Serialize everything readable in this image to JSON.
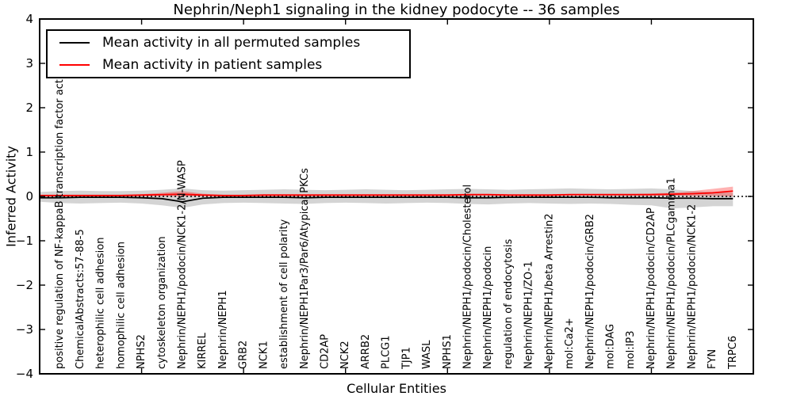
{
  "title": "Nephrin/Neph1 signaling in the kidney podocyte -- 36 samples",
  "legend": {
    "entries": [
      {
        "label": "Mean activity in all permuted samples",
        "color": "#000000"
      },
      {
        "label": "Mean activity in patient samples",
        "color": "#ff0000"
      }
    ]
  },
  "chart_data": {
    "type": "line",
    "title": "Nephrin/Neph1 signaling in the kidney podocyte -- 36 samples",
    "xlabel": "Cellular Entities",
    "ylabel": "Inferred Activity",
    "ylim": [
      -4,
      4
    ],
    "yticks": [
      -4,
      -3,
      -2,
      -1,
      0,
      1,
      2,
      3,
      4
    ],
    "xlim": [
      0,
      35
    ],
    "xticks_unlabeled": [
      5,
      10,
      15,
      20,
      25,
      30,
      35
    ],
    "grid": false,
    "legend_position": "upper left",
    "zero_line": {
      "y": 0,
      "style": "dotted",
      "color": "#000000"
    },
    "categories_note": "categories are plotted at x = 1..34; series include an extra edge point at x = 0",
    "categories": [
      "positive regulation of NF-kappaB transcription factor activity",
      "ChemicalAbstracts:57-88-5",
      "heterophilic cell adhesion",
      "homophilic cell adhesion",
      "NPHS2",
      "cytoskeleton organization",
      "Nephrin/NEPH1/podocin/NCK1-2/N-WASP",
      "KIRREL",
      "Nephrin/NEPH1",
      "GRB2",
      "NCK1",
      "establishment of cell polarity",
      "Nephrin/NEPH1Par3/Par6/Atypical PKCs",
      "CD2AP",
      "NCK2",
      "ARRB2",
      "PLCG1",
      "TJP1",
      "WASL",
      "NPHS1",
      "Nephrin/NEPH1/podocin/Cholesterol",
      "Nephrin/NEPH1/podocin",
      "regulation of endocytosis",
      "Nephrin/NEPH1/ZO-1",
      "Nephrin/NEPH1/beta Arrestin2",
      "mol:Ca2+",
      "Nephrin/NEPH1/podocin/GRB2",
      "mol:DAG",
      "mol:IP3",
      "Nephrin/NEPH1/podocin/CD2AP",
      "Nephrin/NEPH1/podocin/PLCgamma1",
      "Nephrin/NEPH1/podocin/NCK1-2",
      "FYN",
      "TRPC6"
    ],
    "series": [
      {
        "name": "Mean activity in all permuted samples",
        "color": "#000000",
        "band_opacity": 0.17,
        "x": [
          0,
          1,
          2,
          3,
          4,
          5,
          6,
          7,
          8,
          9,
          10,
          11,
          12,
          13,
          14,
          15,
          16,
          17,
          18,
          19,
          20,
          21,
          22,
          23,
          24,
          25,
          26,
          27,
          28,
          29,
          30,
          31,
          32,
          33,
          34
        ],
        "mean": [
          -0.03,
          -0.03,
          -0.02,
          -0.02,
          -0.02,
          -0.03,
          -0.05,
          -0.12,
          -0.04,
          -0.02,
          -0.02,
          -0.02,
          -0.02,
          -0.03,
          -0.02,
          -0.02,
          -0.02,
          -0.02,
          -0.02,
          -0.02,
          -0.02,
          -0.03,
          -0.03,
          -0.02,
          -0.02,
          -0.02,
          -0.02,
          -0.02,
          -0.03,
          -0.03,
          -0.03,
          -0.04,
          -0.04,
          -0.05,
          -0.05
        ],
        "band_upper": [
          0.1,
          0.12,
          0.13,
          0.12,
          0.12,
          0.13,
          0.15,
          0.18,
          0.14,
          0.13,
          0.14,
          0.15,
          0.16,
          0.15,
          0.14,
          0.15,
          0.16,
          0.15,
          0.14,
          0.15,
          0.16,
          0.17,
          0.16,
          0.15,
          0.16,
          0.17,
          0.18,
          0.17,
          0.16,
          0.17,
          0.18,
          0.16,
          0.12,
          0.1,
          0.08
        ],
        "band_lower": [
          -0.12,
          -0.15,
          -0.16,
          -0.15,
          -0.14,
          -0.16,
          -0.2,
          -0.26,
          -0.18,
          -0.15,
          -0.14,
          -0.15,
          -0.16,
          -0.17,
          -0.15,
          -0.14,
          -0.15,
          -0.16,
          -0.15,
          -0.14,
          -0.15,
          -0.17,
          -0.18,
          -0.16,
          -0.15,
          -0.16,
          -0.17,
          -0.16,
          -0.17,
          -0.19,
          -0.2,
          -0.27,
          -0.25,
          -0.22,
          -0.22
        ]
      },
      {
        "name": "Mean activity in patient samples",
        "color": "#ff0000",
        "band_opacity": 0.3,
        "x": [
          0,
          1,
          2,
          3,
          4,
          5,
          6,
          7,
          8,
          9,
          10,
          11,
          12,
          13,
          14,
          15,
          16,
          17,
          18,
          19,
          20,
          21,
          22,
          23,
          24,
          25,
          26,
          27,
          28,
          29,
          30,
          31,
          32,
          33,
          34
        ],
        "mean": [
          0.02,
          0.02,
          0.02,
          0.02,
          0.02,
          0.03,
          0.04,
          0.05,
          0.03,
          0.02,
          0.02,
          0.03,
          0.03,
          0.03,
          0.03,
          0.03,
          0.03,
          0.03,
          0.03,
          0.03,
          0.03,
          0.04,
          0.04,
          0.03,
          0.03,
          0.03,
          0.04,
          0.04,
          0.04,
          0.04,
          0.04,
          0.05,
          0.06,
          0.08,
          0.12
        ],
        "band_upper": [
          0.04,
          0.04,
          0.04,
          0.04,
          0.04,
          0.05,
          0.08,
          0.12,
          0.06,
          0.04,
          0.04,
          0.05,
          0.05,
          0.05,
          0.05,
          0.05,
          0.05,
          0.05,
          0.05,
          0.05,
          0.05,
          0.06,
          0.06,
          0.05,
          0.05,
          0.05,
          0.06,
          0.06,
          0.06,
          0.06,
          0.07,
          0.08,
          0.12,
          0.17,
          0.22
        ],
        "band_lower": [
          0.0,
          0.0,
          0.0,
          0.0,
          0.0,
          0.01,
          0.01,
          0.0,
          0.01,
          0.0,
          0.0,
          0.01,
          0.01,
          0.01,
          0.01,
          0.01,
          0.01,
          0.01,
          0.01,
          0.01,
          0.01,
          0.02,
          0.02,
          0.01,
          0.01,
          0.01,
          0.02,
          0.02,
          0.02,
          0.02,
          0.02,
          0.02,
          0.01,
          0.01,
          0.0
        ]
      }
    ]
  }
}
